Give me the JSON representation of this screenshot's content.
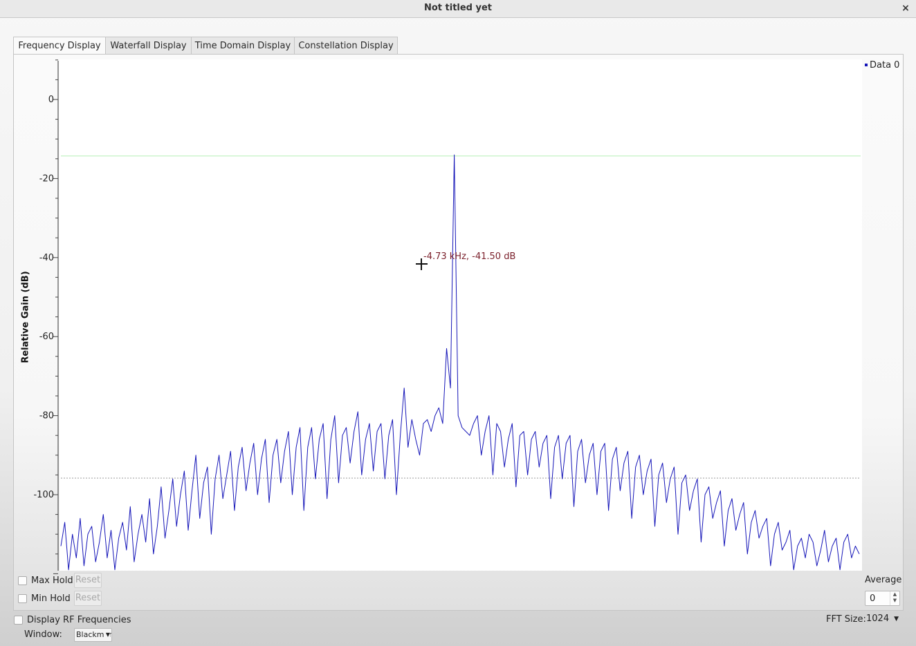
{
  "window": {
    "title": "Not titled yet",
    "close_glyph": "×",
    "close_icon": "close-icon"
  },
  "tabs": [
    {
      "label": "Frequency Display",
      "active": true
    },
    {
      "label": "Waterfall Display",
      "active": false
    },
    {
      "label": "Time Domain Display",
      "active": false
    },
    {
      "label": "Constellation Display",
      "active": false
    }
  ],
  "plot": {
    "marker_readout": "-4.73 kHz, -41.50 dB",
    "legend_label": "Data 0"
  },
  "controls": {
    "max_hold_label": "Max Hold",
    "min_hold_label": "Min Hold",
    "reset_label": "Reset",
    "average_label": "Average",
    "average_value": "0",
    "display_rf_label": "Display RF Frequencies",
    "fft_size_label": "FFT Size:",
    "fft_size_value": "1024",
    "window_label": "Window:",
    "window_value": "Blackman"
  },
  "chart_data": {
    "type": "line",
    "title": "",
    "xlabel": "",
    "ylabel": "Relative Gain (dB)",
    "ylim": [
      -120,
      10
    ],
    "yticks": [
      0,
      -20,
      -40,
      -60,
      -80,
      -100
    ],
    "x_tick_labels_visible": false,
    "series": [
      {
        "name": "Data 0",
        "color": "#1515b8",
        "x_range": [
          0,
          1
        ],
        "description_points": 205,
        "y": [
          -113,
          -107,
          -119,
          -110,
          -116,
          -106,
          -118,
          -110,
          -108,
          -117,
          -112,
          -105,
          -116,
          -109,
          -119,
          -111,
          -107,
          -114,
          -103,
          -117,
          -110,
          -105,
          -112,
          -101,
          -115,
          -108,
          -98,
          -111,
          -104,
          -96,
          -108,
          -100,
          -94,
          -109,
          -99,
          -90,
          -106,
          -97,
          -93,
          -110,
          -96,
          -90,
          -101,
          -95,
          -89,
          -104,
          -93,
          -88,
          -99,
          -92,
          -87,
          -100,
          -91,
          -86,
          -102,
          -90,
          -86,
          -97,
          -89,
          -84,
          -100,
          -88,
          -83,
          -104,
          -88,
          -83,
          -96,
          -86,
          -82,
          -101,
          -86,
          -80,
          -97,
          -85,
          -83,
          -92,
          -84,
          -79,
          -95,
          -86,
          -82,
          -94,
          -84,
          -82,
          -96,
          -85,
          -81,
          -100,
          -85,
          -73,
          -88,
          -81,
          -86,
          -90,
          -82,
          -81,
          -84,
          -80,
          -78,
          -82,
          -63,
          -73,
          -14,
          -80,
          -83,
          -84,
          -85,
          -82,
          -80,
          -90,
          -84,
          -80,
          -95,
          -82,
          -84,
          -93,
          -86,
          -82,
          -98,
          -85,
          -84,
          -95,
          -86,
          -84,
          -93,
          -87,
          -85,
          -101,
          -88,
          -85,
          -96,
          -87,
          -85,
          -103,
          -89,
          -86,
          -97,
          -90,
          -87,
          -100,
          -89,
          -87,
          -104,
          -91,
          -88,
          -99,
          -92,
          -89,
          -106,
          -93,
          -90,
          -100,
          -94,
          -91,
          -108,
          -95,
          -92,
          -102,
          -96,
          -93,
          -110,
          -97,
          -95,
          -104,
          -99,
          -96,
          -112,
          -100,
          -98,
          -106,
          -102,
          -99,
          -113,
          -104,
          -101,
          -109,
          -105,
          -102,
          -115,
          -107,
          -104,
          -111,
          -108,
          -106,
          -118,
          -110,
          -107,
          -114,
          -112,
          -109,
          -119,
          -113,
          -111,
          -116,
          -110,
          -112,
          -118,
          -114,
          -109,
          -117,
          -113,
          -111,
          -119,
          -112,
          -110,
          -116,
          -113,
          -115
        ]
      }
    ],
    "reference_lines": [
      {
        "kind": "max_marker",
        "y": -14.3,
        "color": "#b6f0b6"
      },
      {
        "kind": "noise_floor",
        "y": -95.8,
        "color": "#9a9a9a"
      }
    ],
    "grid": false,
    "legend_position": "top-right"
  }
}
